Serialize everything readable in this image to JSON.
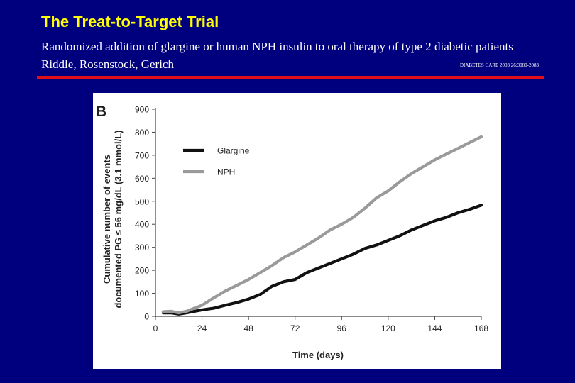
{
  "slide": {
    "title": "The Treat-to-Target Trial",
    "subtitle": "Randomized addition of glargine or human NPH insulin to oral therapy of type 2 diabetic patients",
    "authors": "Riddle, Rosenstock, Gerich",
    "citation": "DIABETES CARE 2003 26;3080-2083",
    "background_color": "#00007f",
    "title_color": "#ffff00",
    "rule_color": "#e0101a"
  },
  "chart_data": {
    "type": "line",
    "panel_label": "B",
    "title": "",
    "xlabel": "Time (days)",
    "ylabel_line1": "Cumulative number of events",
    "ylabel_line2": "documented PG ≤ 56 mg/dL (3.1 mmol/L)",
    "xlim": [
      0,
      168
    ],
    "ylim": [
      0,
      900
    ],
    "xticks": [
      0,
      24,
      48,
      72,
      96,
      120,
      144,
      168
    ],
    "yticks": [
      0,
      100,
      200,
      300,
      400,
      500,
      600,
      700,
      800,
      900
    ],
    "grid": false,
    "legend_placement": "top-left",
    "series": [
      {
        "name": "Glargine",
        "color": "#111111",
        "x": [
          4,
          8,
          12,
          16,
          20,
          24,
          30,
          36,
          42,
          48,
          54,
          60,
          66,
          72,
          78,
          84,
          90,
          96,
          102,
          108,
          114,
          120,
          126,
          132,
          138,
          144,
          150,
          156,
          162,
          168
        ],
        "y": [
          15,
          15,
          10,
          15,
          22,
          28,
          35,
          48,
          60,
          75,
          95,
          130,
          150,
          160,
          190,
          210,
          230,
          250,
          270,
          295,
          310,
          330,
          350,
          375,
          395,
          415,
          430,
          450,
          465,
          483
        ]
      },
      {
        "name": "NPH",
        "color": "#9a9a9a",
        "x": [
          4,
          8,
          12,
          16,
          20,
          24,
          30,
          36,
          42,
          48,
          54,
          60,
          66,
          72,
          78,
          84,
          90,
          96,
          102,
          108,
          114,
          120,
          126,
          132,
          138,
          144,
          150,
          156,
          162,
          168
        ],
        "y": [
          20,
          22,
          15,
          22,
          35,
          48,
          80,
          110,
          135,
          160,
          190,
          220,
          255,
          280,
          310,
          340,
          375,
          400,
          430,
          470,
          515,
          545,
          585,
          620,
          650,
          680,
          705,
          730,
          755,
          780
        ]
      }
    ]
  }
}
